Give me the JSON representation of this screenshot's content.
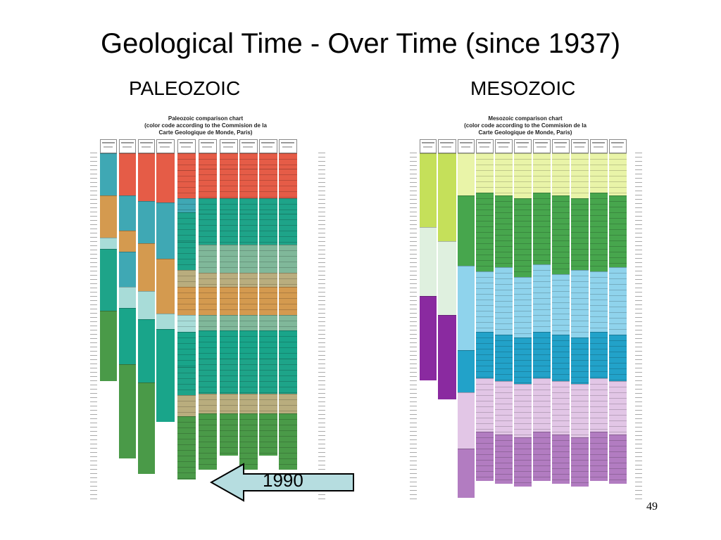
{
  "slide": {
    "title": "Geological Time - Over Time (since 1937)",
    "page_number": "49",
    "arrow_label": "1990"
  },
  "left": {
    "heading": "PALEOZOIC",
    "chart_title_1": "Paleozoic comparison chart",
    "chart_title_2": "(color code according to the Commision de la",
    "chart_title_3": "Carte Geologique de Monde, Paris)"
  },
  "right": {
    "heading": "MESOZOIC",
    "chart_title_1": "Mesozoic comparison chart",
    "chart_title_2": "(color code according to the Commision de la",
    "chart_title_3": "Carte Geologique de Monde, Paris)"
  },
  "colors": {
    "paleozoic": [
      "#3fa8b4",
      "#d49a4f",
      "#3fa8b4",
      "#1ea489",
      "#a8dcd8",
      "#19a58a",
      "#4a9a48",
      "#e55c47",
      "#b9ad7e",
      "#80b89a"
    ],
    "mesozoic": [
      "#c5e05a",
      "#e9f4a8",
      "#47a64d",
      "#8fd3ec",
      "#22a2c9",
      "#e2c6e6",
      "#8a2aa0",
      "#b27cc1",
      "#dff0df"
    ]
  }
}
